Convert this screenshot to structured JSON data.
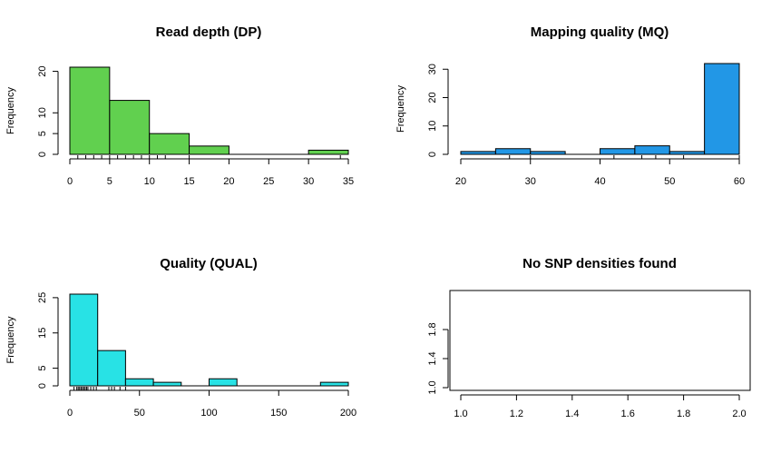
{
  "chart_data": [
    {
      "type": "bar",
      "title": "Read depth (DP)",
      "ylabel": "Frequency",
      "xlabel": "",
      "color": "#61d04f",
      "xlim": [
        0,
        35
      ],
      "ylim": [
        0,
        21
      ],
      "x_ticks": [
        0,
        5,
        10,
        15,
        20,
        25,
        30,
        35
      ],
      "y_ticks": [
        0,
        5,
        10,
        20
      ],
      "bins": [
        {
          "from": 0,
          "to": 5,
          "count": 21
        },
        {
          "from": 5,
          "to": 10,
          "count": 13
        },
        {
          "from": 10,
          "to": 15,
          "count": 5
        },
        {
          "from": 15,
          "to": 20,
          "count": 2
        },
        {
          "from": 20,
          "to": 25,
          "count": 0
        },
        {
          "from": 25,
          "to": 30,
          "count": 0
        },
        {
          "from": 30,
          "to": 35,
          "count": 1
        }
      ],
      "rug": [
        1,
        2,
        3,
        4,
        5,
        6,
        7,
        8,
        9,
        10,
        11,
        12,
        15,
        34
      ]
    },
    {
      "type": "bar",
      "title": "Mapping quality (MQ)",
      "ylabel": "Frequency",
      "xlabel": "",
      "color": "#2297e6",
      "xlim": [
        20,
        60
      ],
      "ylim": [
        0,
        32
      ],
      "x_ticks": [
        20,
        30,
        40,
        50,
        60
      ],
      "y_ticks": [
        0,
        10,
        20,
        30
      ],
      "bins": [
        {
          "from": 20,
          "to": 25,
          "count": 1
        },
        {
          "from": 25,
          "to": 30,
          "count": 2
        },
        {
          "from": 30,
          "to": 35,
          "count": 1
        },
        {
          "from": 35,
          "to": 40,
          "count": 0
        },
        {
          "from": 40,
          "to": 45,
          "count": 2
        },
        {
          "from": 45,
          "to": 50,
          "count": 3
        },
        {
          "from": 50,
          "to": 55,
          "count": 1
        },
        {
          "from": 55,
          "to": 60,
          "count": 32
        }
      ],
      "rug": [
        27,
        30,
        42,
        46,
        48,
        52,
        60
      ]
    },
    {
      "type": "bar",
      "title": "Quality (QUAL)",
      "ylabel": "Frequency",
      "xlabel": "",
      "color": "#28e2e5",
      "xlim": [
        0,
        200
      ],
      "ylim": [
        0,
        26
      ],
      "x_ticks": [
        0,
        50,
        100,
        150,
        200
      ],
      "y_ticks": [
        0,
        5,
        15,
        25
      ],
      "bins": [
        {
          "from": 0,
          "to": 20,
          "count": 26
        },
        {
          "from": 20,
          "to": 40,
          "count": 10
        },
        {
          "from": 40,
          "to": 60,
          "count": 2
        },
        {
          "from": 60,
          "to": 80,
          "count": 1
        },
        {
          "from": 80,
          "to": 100,
          "count": 0
        },
        {
          "from": 100,
          "to": 120,
          "count": 2
        },
        {
          "from": 120,
          "to": 140,
          "count": 0
        },
        {
          "from": 140,
          "to": 160,
          "count": 0
        },
        {
          "from": 160,
          "to": 180,
          "count": 0
        },
        {
          "from": 180,
          "to": 200,
          "count": 1
        }
      ],
      "rug": [
        3,
        5,
        6,
        7,
        8,
        9,
        10,
        11,
        12,
        13,
        15,
        17,
        19,
        28,
        30,
        32,
        36,
        40
      ]
    },
    {
      "type": "scatter",
      "title": "No SNP densities found",
      "xlabel": "",
      "ylabel": "",
      "xlim": [
        1.0,
        2.0
      ],
      "ylim": [
        1.0,
        2.0
      ],
      "x_ticks": [
        "1.0",
        "1.2",
        "1.4",
        "1.6",
        "1.8",
        "2.0"
      ],
      "y_ticks": [
        "1.0",
        "1.4",
        "1.8"
      ],
      "points": []
    }
  ]
}
